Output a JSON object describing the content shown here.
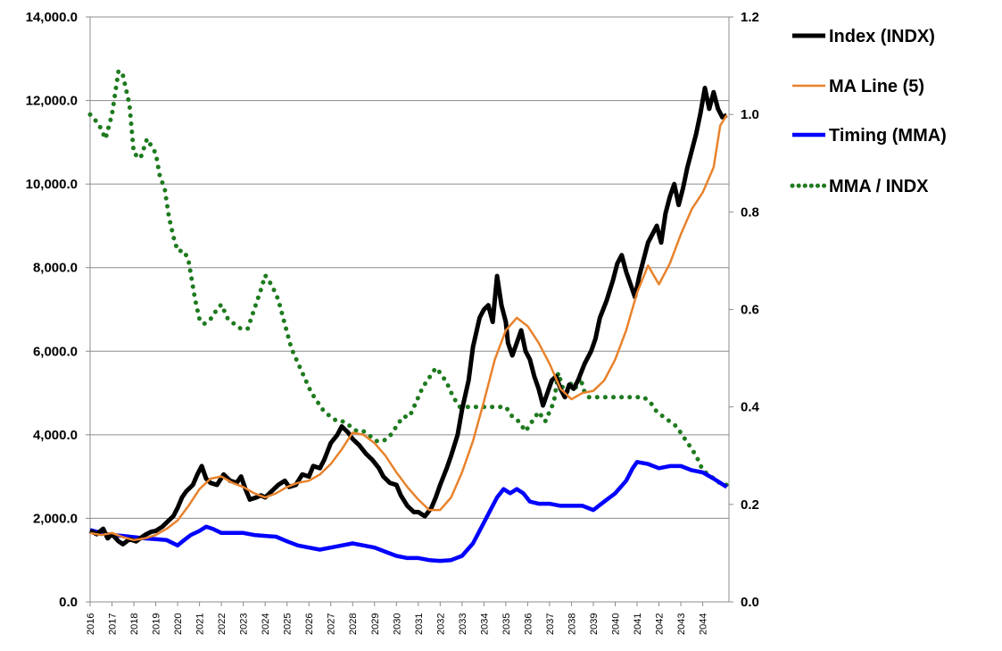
{
  "chart_data": {
    "type": "line",
    "title": "",
    "xlabel": "",
    "ylabel": "",
    "x_ticks": [
      "2016",
      "2017",
      "2018",
      "2019",
      "2020",
      "2021",
      "2022",
      "2023",
      "2024",
      "2025",
      "2026",
      "2027",
      "2028",
      "2029",
      "2030",
      "2031",
      "2032",
      "2033",
      "2034",
      "2035",
      "2036",
      "2037",
      "2038",
      "2039",
      "2040",
      "2041",
      "2042",
      "2043",
      "2044"
    ],
    "y_left": {
      "ylim": [
        0,
        14000
      ],
      "ticks": [
        0,
        2000,
        4000,
        6000,
        8000,
        10000,
        12000,
        14000
      ],
      "tick_labels": [
        "0.0",
        "2,000.0",
        "4,000.0",
        "6,000.0",
        "8,000.0",
        "10,000.0",
        "12,000.0",
        "14,000.0"
      ]
    },
    "y_right": {
      "ylim": [
        0,
        1.2
      ],
      "ticks": [
        0,
        0.2,
        0.4,
        0.6,
        0.8,
        1.0,
        1.2
      ],
      "tick_labels": [
        "0.0",
        "0.2",
        "0.4",
        "0.6",
        "0.8",
        "1.0",
        "1.2"
      ]
    },
    "grid": true,
    "legend_position": "right",
    "series": [
      {
        "name": "Index (INDX)",
        "axis": "left",
        "color": "#000000",
        "style": "solid",
        "x": [
          2016.0,
          2016.3,
          2016.6,
          2016.8,
          2017.0,
          2017.3,
          2017.5,
          2017.8,
          2018.1,
          2018.5,
          2018.8,
          2019.0,
          2019.3,
          2019.5,
          2019.8,
          2020.0,
          2020.2,
          2020.4,
          2020.7,
          2020.9,
          2021.1,
          2021.3,
          2021.5,
          2021.8,
          2022.1,
          2022.4,
          2022.7,
          2022.9,
          2023.1,
          2023.3,
          2023.6,
          2023.8,
          2024.0,
          2024.3,
          2024.6,
          2024.9,
          2025.1,
          2025.4,
          2025.7,
          2026.0,
          2026.2,
          2026.5,
          2026.7,
          2027.0,
          2027.3,
          2027.5,
          2027.8,
          2028.0,
          2028.3,
          2028.6,
          2028.9,
          2029.2,
          2029.4,
          2029.7,
          2030.0,
          2030.2,
          2030.5,
          2030.8,
          2031.0,
          2031.3,
          2031.6,
          2031.8,
          2032.0,
          2032.3,
          2032.5,
          2032.8,
          2033.0,
          2033.3,
          2033.5,
          2033.8,
          2034.0,
          2034.2,
          2034.4,
          2034.6,
          2034.8,
          2035.0,
          2035.1,
          2035.3,
          2035.5,
          2035.7,
          2035.9,
          2036.1,
          2036.3,
          2036.5,
          2036.7,
          2036.9,
          2037.1,
          2037.3,
          2037.5,
          2037.7,
          2037.9,
          2038.1,
          2038.3,
          2038.6,
          2038.9,
          2039.1,
          2039.3,
          2039.6,
          2039.9,
          2040.1,
          2040.3,
          2040.5,
          2040.7,
          2040.9,
          2041.1,
          2041.3,
          2041.5,
          2041.7,
          2041.9,
          2042.1,
          2042.3,
          2042.5,
          2042.7,
          2042.9,
          2043.1,
          2043.3,
          2043.5,
          2043.7,
          2043.9,
          2044.1,
          2044.3,
          2044.5,
          2044.7,
          2044.9,
          2045.1
        ],
        "values": [
          1700,
          1620,
          1750,
          1520,
          1620,
          1450,
          1380,
          1500,
          1450,
          1600,
          1680,
          1700,
          1800,
          1900,
          2050,
          2250,
          2500,
          2650,
          2800,
          3050,
          3250,
          2950,
          2850,
          2800,
          3050,
          2900,
          2850,
          3000,
          2700,
          2450,
          2500,
          2550,
          2500,
          2650,
          2800,
          2900,
          2750,
          2800,
          3050,
          3000,
          3250,
          3200,
          3400,
          3800,
          4000,
          4200,
          4050,
          3900,
          3750,
          3550,
          3400,
          3200,
          3000,
          2850,
          2800,
          2550,
          2300,
          2150,
          2150,
          2050,
          2250,
          2500,
          2800,
          3200,
          3500,
          4000,
          4600,
          5300,
          6100,
          6800,
          7000,
          7100,
          6700,
          7800,
          7100,
          6700,
          6200,
          5900,
          6200,
          6500,
          6000,
          5800,
          5400,
          5100,
          4700,
          5000,
          5300,
          5400,
          5100,
          4900,
          5200,
          5100,
          5300,
          5700,
          6000,
          6300,
          6800,
          7200,
          7700,
          8100,
          8300,
          7900,
          7600,
          7300,
          7800,
          8200,
          8600,
          8800,
          9000,
          8600,
          9300,
          9700,
          10000,
          9500,
          9900,
          10400,
          10800,
          11200,
          11700,
          12300,
          11800,
          12200,
          11800,
          11600,
          11650
        ]
      },
      {
        "name": "MA Line (5)",
        "axis": "left",
        "color": "#e8822c",
        "style": "solid",
        "x": [
          2016.0,
          2016.5,
          2017.0,
          2017.5,
          2018.0,
          2018.5,
          2019.0,
          2019.5,
          2020.0,
          2020.5,
          2021.0,
          2021.5,
          2022.0,
          2022.5,
          2023.0,
          2023.5,
          2024.0,
          2024.5,
          2025.0,
          2025.5,
          2026.0,
          2026.5,
          2027.0,
          2027.5,
          2028.0,
          2028.5,
          2029.0,
          2029.5,
          2030.0,
          2030.5,
          2031.0,
          2031.5,
          2032.0,
          2032.5,
          2033.0,
          2033.5,
          2034.0,
          2034.5,
          2035.0,
          2035.5,
          2036.0,
          2036.5,
          2037.0,
          2037.5,
          2038.0,
          2038.5,
          2039.0,
          2039.5,
          2040.0,
          2040.5,
          2041.0,
          2041.5,
          2042.0,
          2042.5,
          2043.0,
          2043.5,
          2044.0,
          2044.5,
          2044.8,
          2045.1
        ],
        "values": [
          1650,
          1600,
          1650,
          1550,
          1480,
          1520,
          1600,
          1750,
          1950,
          2300,
          2700,
          2950,
          3000,
          2850,
          2750,
          2600,
          2500,
          2600,
          2750,
          2850,
          2900,
          3050,
          3300,
          3650,
          4050,
          4000,
          3800,
          3500,
          3100,
          2750,
          2450,
          2200,
          2200,
          2500,
          3100,
          3850,
          4800,
          5800,
          6500,
          6800,
          6600,
          6200,
          5700,
          5100,
          4850,
          5000,
          5050,
          5300,
          5800,
          6500,
          7400,
          8050,
          7600,
          8100,
          8800,
          9400,
          9800,
          10400,
          11400,
          11650
        ]
      },
      {
        "name": "Timing (MMA)",
        "axis": "left",
        "color": "#0000ff",
        "style": "solid",
        "x": [
          2016.0,
          2016.5,
          2017.0,
          2017.5,
          2018.0,
          2018.5,
          2019.0,
          2019.5,
          2020.0,
          2020.3,
          2020.6,
          2021.0,
          2021.3,
          2021.6,
          2022.0,
          2022.5,
          2023.0,
          2023.5,
          2024.0,
          2024.5,
          2025.0,
          2025.5,
          2026.0,
          2026.5,
          2027.0,
          2027.5,
          2028.0,
          2028.5,
          2029.0,
          2029.5,
          2030.0,
          2030.5,
          2031.0,
          2031.5,
          2032.0,
          2032.5,
          2033.0,
          2033.5,
          2034.0,
          2034.3,
          2034.6,
          2034.9,
          2035.2,
          2035.5,
          2035.8,
          2036.1,
          2036.5,
          2037.0,
          2037.5,
          2038.0,
          2038.5,
          2039.0,
          2039.5,
          2040.0,
          2040.5,
          2040.8,
          2041.0,
          2041.5,
          2042.0,
          2042.5,
          2043.0,
          2043.5,
          2044.0,
          2044.5,
          2045.1
        ],
        "values": [
          1720,
          1650,
          1600,
          1580,
          1550,
          1520,
          1500,
          1480,
          1350,
          1480,
          1600,
          1700,
          1800,
          1750,
          1650,
          1650,
          1650,
          1600,
          1580,
          1560,
          1450,
          1350,
          1300,
          1250,
          1300,
          1350,
          1400,
          1350,
          1300,
          1200,
          1100,
          1050,
          1050,
          1000,
          980,
          1000,
          1100,
          1400,
          1900,
          2200,
          2500,
          2700,
          2600,
          2700,
          2600,
          2400,
          2350,
          2350,
          2300,
          2300,
          2300,
          2200,
          2400,
          2600,
          2900,
          3200,
          3350,
          3300,
          3200,
          3250,
          3250,
          3150,
          3100,
          2950,
          2750
        ]
      },
      {
        "name": "MMA / INDX",
        "axis": "right",
        "color": "#1e7a1e",
        "style": "dotted",
        "x": [
          2016.0,
          2016.4,
          2016.7,
          2017.0,
          2017.3,
          2017.5,
          2017.8,
          2018.0,
          2018.3,
          2018.6,
          2019.0,
          2019.2,
          2019.4,
          2019.6,
          2019.8,
          2020.0,
          2020.3,
          2020.5,
          2020.8,
          2021.0,
          2021.2,
          2021.5,
          2021.8,
          2022.0,
          2022.3,
          2022.6,
          2022.9,
          2023.2,
          2023.5,
          2023.8,
          2024.0,
          2024.3,
          2024.6,
          2024.9,
          2025.2,
          2025.5,
          2025.8,
          2026.1,
          2026.4,
          2026.7,
          2027.0,
          2027.3,
          2027.6,
          2027.9,
          2028.2,
          2028.5,
          2028.8,
          2029.1,
          2029.4,
          2029.7,
          2030.0,
          2030.3,
          2030.6,
          2030.9,
          2031.2,
          2031.5,
          2031.8,
          2032.0,
          2032.3,
          2032.6,
          2032.9,
          2033.2,
          2033.5,
          2033.8,
          2034.1,
          2034.4,
          2034.7,
          2035.0,
          2035.3,
          2035.6,
          2035.9,
          2036.2,
          2036.5,
          2036.8,
          2037.0,
          2037.2,
          2037.4,
          2037.6,
          2037.8,
          2038.0,
          2038.2,
          2038.4,
          2038.6,
          2038.8,
          2039.0,
          2039.3,
          2039.6,
          2039.9,
          2040.2,
          2040.5,
          2040.8,
          2041.0,
          2041.3,
          2041.6,
          2041.9,
          2042.2,
          2042.5,
          2042.8,
          2043.1,
          2043.4,
          2043.7,
          2044.0,
          2044.3,
          2044.6,
          2044.9,
          2045.1
        ],
        "values": [
          1.0,
          0.98,
          0.95,
          1.0,
          1.09,
          1.08,
          1.02,
          0.92,
          0.91,
          0.95,
          0.92,
          0.87,
          0.85,
          0.79,
          0.75,
          0.72,
          0.72,
          0.7,
          0.62,
          0.58,
          0.57,
          0.58,
          0.6,
          0.61,
          0.58,
          0.57,
          0.56,
          0.56,
          0.6,
          0.64,
          0.67,
          0.65,
          0.62,
          0.57,
          0.52,
          0.49,
          0.46,
          0.43,
          0.41,
          0.39,
          0.38,
          0.37,
          0.37,
          0.36,
          0.35,
          0.35,
          0.34,
          0.33,
          0.33,
          0.34,
          0.36,
          0.38,
          0.38,
          0.41,
          0.44,
          0.46,
          0.48,
          0.47,
          0.45,
          0.42,
          0.4,
          0.4,
          0.4,
          0.4,
          0.4,
          0.4,
          0.4,
          0.4,
          0.38,
          0.37,
          0.35,
          0.37,
          0.39,
          0.37,
          0.39,
          0.41,
          0.47,
          0.44,
          0.43,
          0.45,
          0.44,
          0.46,
          0.43,
          0.42,
          0.42,
          0.42,
          0.42,
          0.42,
          0.42,
          0.42,
          0.42,
          0.42,
          0.42,
          0.41,
          0.39,
          0.38,
          0.37,
          0.36,
          0.34,
          0.32,
          0.3,
          0.27,
          0.26,
          0.25,
          0.24,
          0.24
        ]
      }
    ]
  }
}
